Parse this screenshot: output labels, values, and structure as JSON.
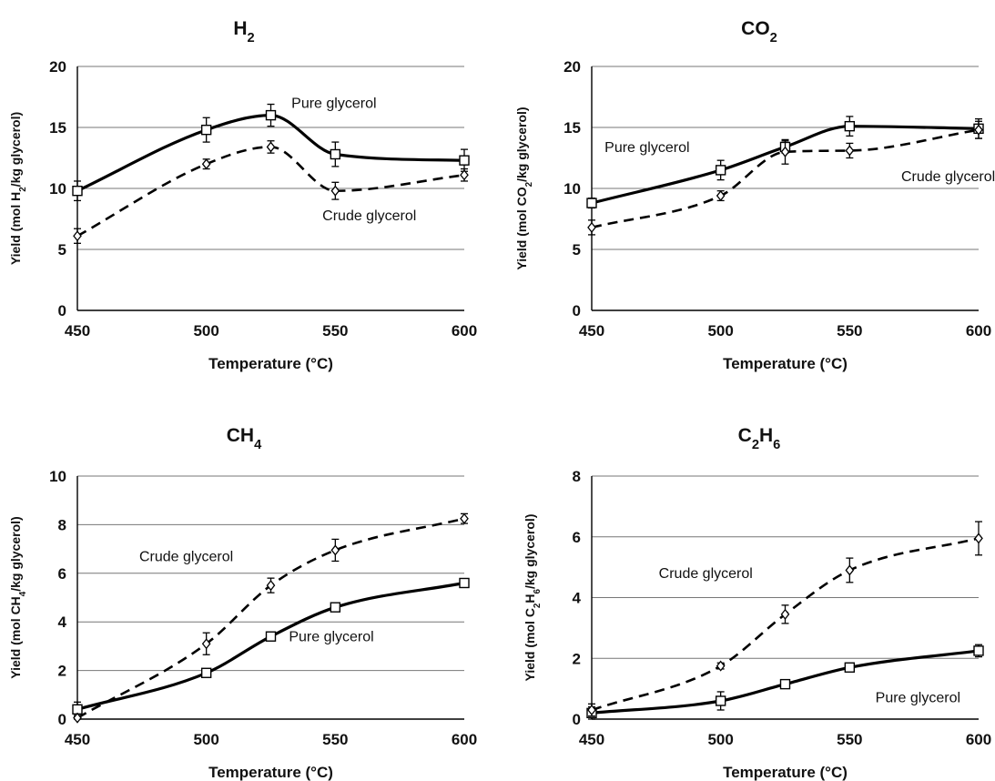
{
  "colors": {
    "line": "#000000",
    "grid": "#777777",
    "marker_fill": "#ffffff"
  },
  "chart_data": [
    {
      "type": "line",
      "title": "H2",
      "title_parts": [
        {
          "t": "H"
        },
        {
          "t": "2",
          "sub": true
        }
      ],
      "xlabel": "Temperature (°C)",
      "ylabel_parts": [
        {
          "t": "Yield (mol H"
        },
        {
          "t": "2",
          "sub": true
        },
        {
          "t": "/kg glycerol)"
        }
      ],
      "xlim": [
        450,
        600
      ],
      "ylim": [
        0,
        20
      ],
      "xticks": [
        450,
        500,
        550,
        600
      ],
      "yticks": [
        0,
        5,
        10,
        15,
        20
      ],
      "grid": true,
      "x": [
        450,
        500,
        525,
        550,
        600
      ],
      "series": [
        {
          "name": "Pure glycerol",
          "style": "solid",
          "marker": "square",
          "values": [
            9.8,
            14.8,
            16.0,
            12.8,
            12.3
          ],
          "errors": [
            0.8,
            1.0,
            0.9,
            1.0,
            0.9
          ],
          "label_anchor": [
            533,
            16.6
          ]
        },
        {
          "name": "Crude glycerol",
          "style": "dashed",
          "marker": "diamond",
          "values": [
            6.1,
            12.0,
            13.4,
            9.8,
            11.1
          ],
          "errors": [
            0.6,
            0.4,
            0.5,
            0.7,
            0.5
          ],
          "label_anchor": [
            545,
            7.4
          ]
        }
      ]
    },
    {
      "type": "line",
      "title": "CO2",
      "title_parts": [
        {
          "t": "CO"
        },
        {
          "t": "2",
          "sub": true
        }
      ],
      "xlabel": "Temperature (°C)",
      "ylabel_parts": [
        {
          "t": "Yield (mol CO"
        },
        {
          "t": "2",
          "sub": true
        },
        {
          "t": "/kg glycerol)"
        }
      ],
      "xlim": [
        450,
        600
      ],
      "ylim": [
        0,
        20
      ],
      "xticks": [
        450,
        500,
        550,
        600
      ],
      "yticks": [
        0,
        5,
        10,
        15,
        20
      ],
      "grid": true,
      "x": [
        450,
        500,
        525,
        550,
        600
      ],
      "series": [
        {
          "name": "Pure glycerol",
          "style": "solid",
          "marker": "square",
          "values": [
            8.8,
            11.5,
            13.4,
            15.1,
            14.9
          ],
          "errors": [
            0.4,
            0.8,
            0.5,
            0.8,
            0.8
          ],
          "label_anchor": [
            455,
            13.0
          ]
        },
        {
          "name": "Crude glycerol",
          "style": "dashed",
          "marker": "diamond",
          "values": [
            6.8,
            9.4,
            13.0,
            13.1,
            14.8
          ],
          "errors": [
            0.6,
            0.4,
            1.0,
            0.6,
            0.7
          ],
          "label_anchor": [
            570,
            10.6
          ]
        }
      ]
    },
    {
      "type": "line",
      "title": "CH4",
      "title_parts": [
        {
          "t": "CH"
        },
        {
          "t": "4",
          "sub": true
        }
      ],
      "xlabel": "Temperature (°C)",
      "ylabel_parts": [
        {
          "t": "Yield (mol CH"
        },
        {
          "t": "4",
          "sub": true
        },
        {
          "t": "/kg glycerol)"
        }
      ],
      "xlim": [
        450,
        600
      ],
      "ylim": [
        0,
        10
      ],
      "xticks": [
        450,
        500,
        550,
        600
      ],
      "yticks": [
        0,
        2,
        4,
        6,
        8,
        10
      ],
      "grid": true,
      "x": [
        450,
        500,
        525,
        550,
        600
      ],
      "series": [
        {
          "name": "Pure glycerol",
          "style": "solid",
          "marker": "square",
          "values": [
            0.4,
            1.9,
            3.4,
            4.6,
            5.6
          ],
          "errors": [
            0.3,
            0.1,
            0.1,
            0.1,
            0.1
          ],
          "label_anchor": [
            532,
            3.2
          ]
        },
        {
          "name": "Crude glycerol",
          "style": "dashed",
          "marker": "diamond",
          "values": [
            0.05,
            3.1,
            5.5,
            6.95,
            8.25
          ],
          "errors": [
            0.1,
            0.45,
            0.3,
            0.45,
            0.2
          ],
          "label_anchor": [
            474,
            6.5
          ]
        }
      ]
    },
    {
      "type": "line",
      "title": "C2H6",
      "title_parts": [
        {
          "t": "C"
        },
        {
          "t": "2",
          "sub": true
        },
        {
          "t": "H"
        },
        {
          "t": "6",
          "sub": true
        }
      ],
      "xlabel": "Temperature (°C)",
      "ylabel_parts": [
        {
          "t": "Yield (mol C"
        },
        {
          "t": "2",
          "sub": true
        },
        {
          "t": "H"
        },
        {
          "t": "6",
          "sub": true
        },
        {
          "t": "/kg glycerol)"
        }
      ],
      "xlim": [
        450,
        600
      ],
      "ylim": [
        0,
        8
      ],
      "xticks": [
        450,
        500,
        550,
        600
      ],
      "yticks": [
        0,
        2,
        4,
        6,
        8
      ],
      "grid": true,
      "x": [
        450,
        500,
        525,
        550,
        600
      ],
      "series": [
        {
          "name": "Pure glycerol",
          "style": "solid",
          "marker": "square",
          "values": [
            0.2,
            0.6,
            1.15,
            1.7,
            2.25
          ],
          "errors": [
            0.2,
            0.3,
            0.1,
            0.1,
            0.2
          ],
          "label_anchor": [
            560,
            0.55
          ]
        },
        {
          "name": "Crude glycerol",
          "style": "dashed",
          "marker": "diamond",
          "values": [
            0.3,
            1.75,
            3.45,
            4.9,
            5.95
          ],
          "errors": [
            0.2,
            0.1,
            0.3,
            0.4,
            0.55
          ],
          "label_anchor": [
            476,
            4.65
          ]
        }
      ]
    }
  ]
}
